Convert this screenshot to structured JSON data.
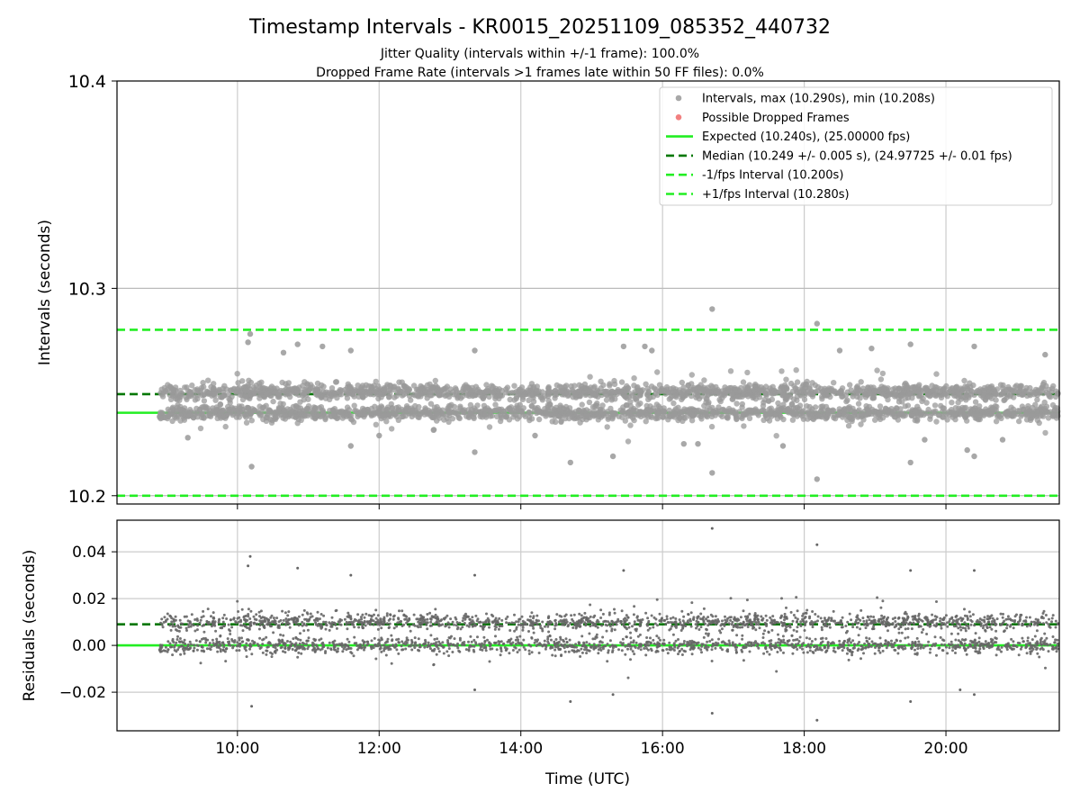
{
  "chart_data": [
    {
      "type": "scatter",
      "panel": "intervals",
      "title": "Timestamp Intervals - KR0015_20251109_085352_440732",
      "subtitle_lines": [
        "Jitter Quality (intervals within +/-1 frame): 100.0%",
        "Dropped Frame Rate (intervals >1 frames late within 50 FF files): 0.0%"
      ],
      "xlabel": "",
      "ylabel": "Intervals (seconds)",
      "xlim_hours": [
        8.3,
        21.6
      ],
      "ylim": [
        10.196,
        10.4
      ],
      "yticks": [
        {
          "value": 10.2,
          "label": "10.2"
        },
        {
          "value": 10.3,
          "label": "10.3"
        },
        {
          "value": 10.4,
          "label": "10.4"
        }
      ],
      "grid": true,
      "legend_position": "top-right",
      "legend": [
        {
          "label": "Intervals, max (10.290s), min (10.208s)",
          "kind": "marker",
          "color": "#999999"
        },
        {
          "label": "Possible Dropped Frames",
          "kind": "marker",
          "color": "#f06a6a"
        },
        {
          "label": "Expected (10.240s), (25.00000 fps)",
          "kind": "solid",
          "color": "#22ee22"
        },
        {
          "label": "Median (10.249 +/- 0.005 s), (24.97725 +/- 0.01 fps)",
          "kind": "dashed",
          "color": "#007700"
        },
        {
          "label": "-1/fps Interval (10.200s)",
          "kind": "dashed",
          "color": "#22ee22"
        },
        {
          "label": "+1/fps Interval (10.280s)",
          "kind": "dashed",
          "color": "#22ee22"
        }
      ],
      "reference_lines": [
        {
          "name": "expected",
          "y": 10.24,
          "style": "solid",
          "color": "#22ee22"
        },
        {
          "name": "median",
          "y": 10.249,
          "style": "dashed",
          "color": "#007700"
        },
        {
          "name": "minus-one-frame",
          "y": 10.2,
          "style": "dashed",
          "color": "#22ee22"
        },
        {
          "name": "plus-one-frame",
          "y": 10.28,
          "style": "dashed",
          "color": "#22ee22"
        }
      ],
      "series": {
        "name": "Intervals",
        "color": "#999999",
        "x_range_hours": [
          8.9,
          21.6
        ],
        "count": 3000,
        "y_clusters": [
          10.24,
          10.25
        ],
        "cluster_spread": 0.0018,
        "outliers": [
          {
            "x": 16.7,
            "y": 10.29
          },
          {
            "x": 18.18,
            "y": 10.283
          },
          {
            "x": 10.18,
            "y": 10.278
          },
          {
            "x": 10.15,
            "y": 10.274
          },
          {
            "x": 10.65,
            "y": 10.269
          },
          {
            "x": 10.85,
            "y": 10.273
          },
          {
            "x": 11.2,
            "y": 10.272
          },
          {
            "x": 11.6,
            "y": 10.27
          },
          {
            "x": 13.35,
            "y": 10.27
          },
          {
            "x": 15.45,
            "y": 10.272
          },
          {
            "x": 15.75,
            "y": 10.272
          },
          {
            "x": 15.85,
            "y": 10.27
          },
          {
            "x": 18.5,
            "y": 10.27
          },
          {
            "x": 18.95,
            "y": 10.271
          },
          {
            "x": 19.5,
            "y": 10.273
          },
          {
            "x": 20.4,
            "y": 10.272
          },
          {
            "x": 21.4,
            "y": 10.268
          },
          {
            "x": 10.2,
            "y": 10.214
          },
          {
            "x": 16.7,
            "y": 10.211
          },
          {
            "x": 18.18,
            "y": 10.208
          },
          {
            "x": 19.5,
            "y": 10.216
          },
          {
            "x": 14.7,
            "y": 10.216
          },
          {
            "x": 15.3,
            "y": 10.219
          },
          {
            "x": 20.4,
            "y": 10.219
          },
          {
            "x": 20.3,
            "y": 10.222
          },
          {
            "x": 13.35,
            "y": 10.221
          },
          {
            "x": 9.3,
            "y": 10.228
          },
          {
            "x": 11.6,
            "y": 10.224
          },
          {
            "x": 17.7,
            "y": 10.224
          },
          {
            "x": 16.3,
            "y": 10.225
          },
          {
            "x": 16.5,
            "y": 10.225
          },
          {
            "x": 19.7,
            "y": 10.227
          },
          {
            "x": 12.0,
            "y": 10.229
          },
          {
            "x": 14.2,
            "y": 10.229
          },
          {
            "x": 20.8,
            "y": 10.227
          }
        ]
      }
    },
    {
      "type": "scatter",
      "panel": "residuals",
      "xlabel": "Time (UTC)",
      "ylabel": "Residuals (seconds)",
      "xlim_hours": [
        8.3,
        21.6
      ],
      "ylim": [
        -0.0365,
        0.0535
      ],
      "yticks": [
        {
          "value": 0.04,
          "label": "0.04"
        },
        {
          "value": 0.02,
          "label": "0.02"
        },
        {
          "value": 0.0,
          "label": "0.00"
        },
        {
          "value": -0.02,
          "label": "−0.02"
        }
      ],
      "xticks": [
        {
          "value": 10,
          "label": "10:00"
        },
        {
          "value": 12,
          "label": "12:00"
        },
        {
          "value": 14,
          "label": "14:00"
        },
        {
          "value": 16,
          "label": "16:00"
        },
        {
          "value": 18,
          "label": "18:00"
        },
        {
          "value": 20,
          "label": "20:00"
        }
      ],
      "grid": true,
      "reference_lines": [
        {
          "name": "zero",
          "y": 0.0,
          "style": "solid",
          "color": "#22ee22"
        },
        {
          "name": "median",
          "y": 0.009,
          "style": "dashed",
          "color": "#007700"
        }
      ],
      "series": {
        "name": "Residuals",
        "color": "#666666",
        "x_range_hours": [
          8.9,
          21.6
        ],
        "count": 3000,
        "y_clusters": [
          0.0,
          0.01
        ],
        "cluster_spread": 0.0018,
        "outliers": [
          {
            "x": 16.7,
            "y": 0.05
          },
          {
            "x": 18.18,
            "y": 0.043
          },
          {
            "x": 10.18,
            "y": 0.038
          },
          {
            "x": 10.15,
            "y": 0.034
          },
          {
            "x": 10.85,
            "y": 0.033
          },
          {
            "x": 15.45,
            "y": 0.032
          },
          {
            "x": 19.5,
            "y": 0.032
          },
          {
            "x": 20.4,
            "y": 0.032
          },
          {
            "x": 13.35,
            "y": 0.03
          },
          {
            "x": 11.6,
            "y": 0.03
          },
          {
            "x": 10.2,
            "y": -0.026
          },
          {
            "x": 16.7,
            "y": -0.029
          },
          {
            "x": 18.18,
            "y": -0.032
          },
          {
            "x": 19.5,
            "y": -0.024
          },
          {
            "x": 14.7,
            "y": -0.024
          },
          {
            "x": 15.3,
            "y": -0.021
          },
          {
            "x": 20.4,
            "y": -0.021
          },
          {
            "x": 13.35,
            "y": -0.019
          },
          {
            "x": 20.2,
            "y": -0.019
          }
        ]
      }
    }
  ]
}
